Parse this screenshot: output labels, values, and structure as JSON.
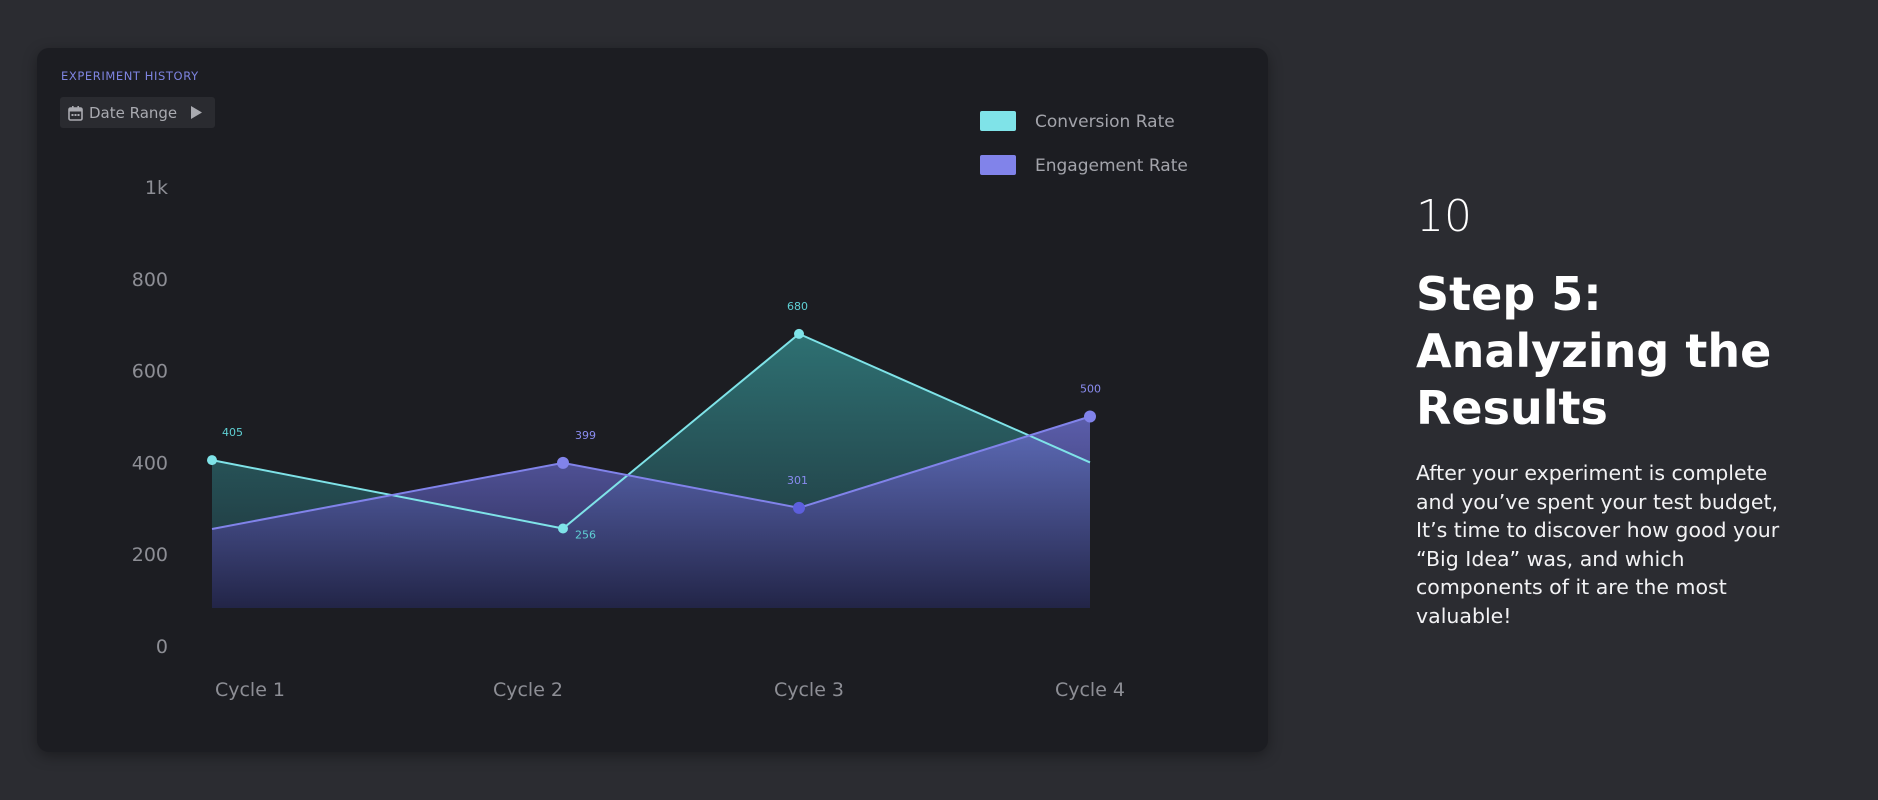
{
  "card": {
    "title": "EXPERIMENT HISTORY",
    "date_range_label": "Date Range",
    "icons": [
      "calendar-icon",
      "play-icon"
    ]
  },
  "chart_data": {
    "type": "area",
    "title": "EXPERIMENT HISTORY",
    "categories": [
      "Cycle 1",
      "Cycle 2",
      "Cycle 3",
      "Cycle 4"
    ],
    "y_ticks": [
      "0",
      "200",
      "400",
      "600",
      "800",
      "1k"
    ],
    "ylim": [
      0,
      1000
    ],
    "grid": false,
    "legend_position": "top-right",
    "series": [
      {
        "name": "Conversion Rate",
        "color": "#7fe3e8",
        "values": [
          405,
          256,
          680,
          400
        ],
        "labels": [
          "405",
          "256",
          "680",
          ""
        ]
      },
      {
        "name": "Engagement Rate",
        "color": "#8183ea",
        "values": [
          255,
          399,
          301,
          500
        ],
        "labels": [
          "",
          "399",
          "301",
          "500"
        ]
      }
    ]
  },
  "aside": {
    "step_number": "10",
    "title_lines": [
      "Step 5:",
      "Analyzing the",
      "Results"
    ],
    "body_lines": [
      "After your experiment is complete",
      "and you’ve spent your test budget,",
      "It’s time to discover how good your",
      "“Big Idea” was, and which",
      "components of it are the most",
      "valuable!"
    ]
  }
}
